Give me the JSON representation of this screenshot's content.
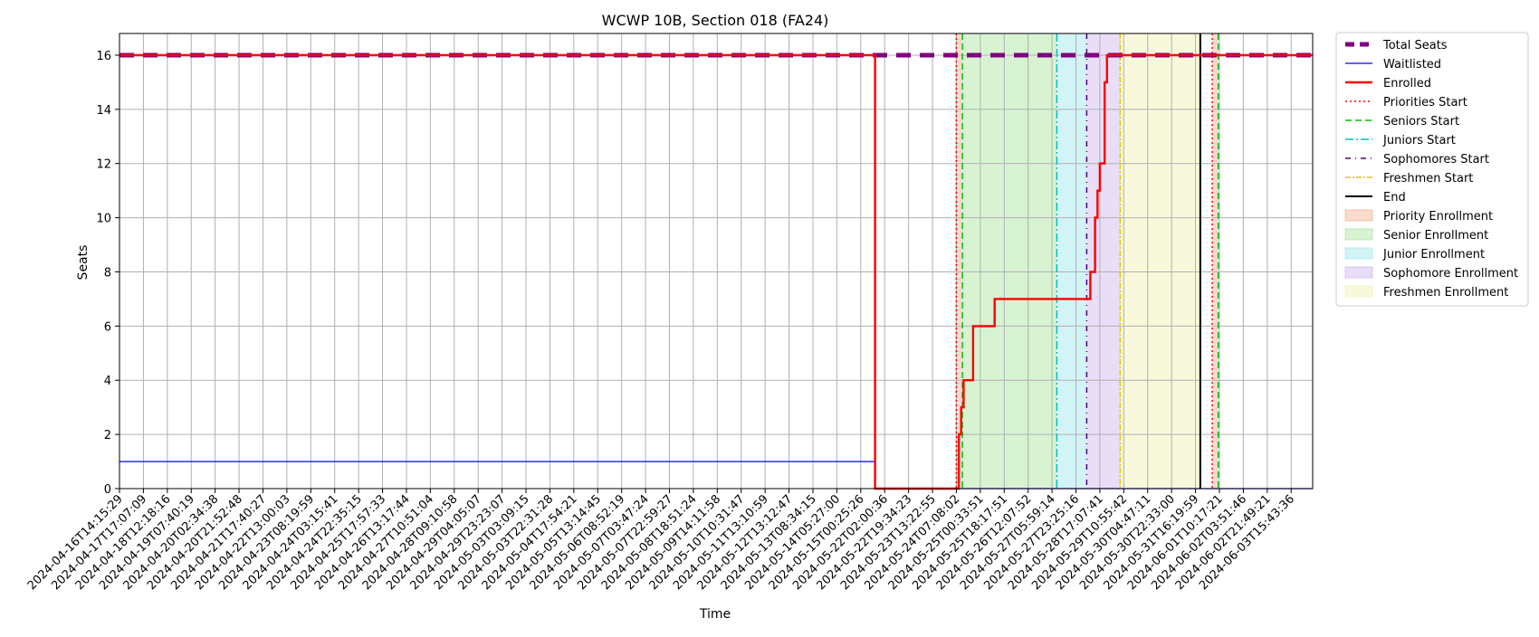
{
  "chart_data": {
    "type": "line",
    "title": "WCWP 10B, Section 018 (FA24)",
    "xlabel": "Time",
    "ylabel": "Seats",
    "ylim": [
      0,
      16.8
    ],
    "yticks": [
      0,
      2,
      4,
      6,
      8,
      10,
      12,
      14,
      16
    ],
    "grid": true,
    "legend_position": "outside-top-right",
    "x_range": [
      "2024-04-16T14:15:29",
      "2024-06-04T10:00:00"
    ],
    "xtick_labels": [
      "2024-04-16T14:15:29",
      "2024-04-17T17:07:09",
      "2024-04-18T12:18:16",
      "2024-04-19T07:40:19",
      "2024-04-20T02:34:38",
      "2024-04-20T21:52:48",
      "2024-04-21T17:40:27",
      "2024-04-22T13:00:03",
      "2024-04-23T08:19:59",
      "2024-04-24T03:15:41",
      "2024-04-24T22:35:15",
      "2024-04-25T17:57:33",
      "2024-04-26T13:17:44",
      "2024-04-27T10:51:04",
      "2024-04-28T09:10:58",
      "2024-04-29T04:05:07",
      "2024-04-29T23:23:07",
      "2024-05-03T03:09:15",
      "2024-05-03T22:31:28",
      "2024-05-04T17:54:21",
      "2024-05-05T13:14:45",
      "2024-05-06T08:52:19",
      "2024-05-07T03:47:24",
      "2024-05-07T22:59:27",
      "2024-05-08T18:51:24",
      "2024-05-09T14:11:58",
      "2024-05-10T10:31:47",
      "2024-05-11T13:10:59",
      "2024-05-12T13:12:47",
      "2024-05-13T08:34:15",
      "2024-05-14T05:27:00",
      "2024-05-15T00:25:26",
      "2024-05-22T02:00:36",
      "2024-05-22T19:34:23",
      "2024-05-23T13:22:55",
      "2024-05-24T07:08:02",
      "2024-05-25T00:33:51",
      "2024-05-25T18:17:51",
      "2024-05-26T12:07:52",
      "2024-05-27T05:59:14",
      "2024-05-27T23:25:16",
      "2024-05-28T17:07:41",
      "2024-05-29T10:55:42",
      "2024-05-30T04:47:11",
      "2024-05-30T22:33:00",
      "2024-05-31T16:19:59",
      "2024-06-01T10:17:21",
      "2024-06-02T03:51:46",
      "2024-06-02T21:49:21",
      "2024-06-03T15:43:36"
    ],
    "series": [
      {
        "name": "Total Seats",
        "color": "#800080",
        "style": "dashed-thick",
        "points": [
          [
            0,
            16
          ],
          [
            49.9,
            16
          ]
        ]
      },
      {
        "name": "Waitlisted",
        "color": "#0000ff",
        "style": "solid-thin",
        "points": [
          [
            0,
            1
          ],
          [
            31.6,
            1
          ],
          [
            31.6,
            0
          ],
          [
            49.9,
            0
          ]
        ]
      },
      {
        "name": "Enrolled",
        "color": "#ff0000",
        "style": "solid-thick",
        "points": [
          [
            0,
            16
          ],
          [
            31.6,
            16
          ],
          [
            31.6,
            0
          ],
          [
            35.1,
            0
          ],
          [
            35.1,
            2
          ],
          [
            35.2,
            2
          ],
          [
            35.2,
            3
          ],
          [
            35.3,
            3
          ],
          [
            35.3,
            4
          ],
          [
            35.7,
            4
          ],
          [
            35.7,
            6
          ],
          [
            36.6,
            6
          ],
          [
            36.6,
            7
          ],
          [
            40.6,
            7
          ],
          [
            40.6,
            8
          ],
          [
            40.8,
            8
          ],
          [
            40.8,
            10
          ],
          [
            40.9,
            10
          ],
          [
            40.9,
            11
          ],
          [
            41.0,
            11
          ],
          [
            41.0,
            12
          ],
          [
            41.2,
            12
          ],
          [
            41.2,
            15
          ],
          [
            41.3,
            15
          ],
          [
            41.3,
            16
          ],
          [
            49.9,
            16
          ]
        ]
      }
    ],
    "markers": [
      {
        "name": "Priorities Start",
        "color": "#ff0000",
        "style": "dotted",
        "x": 35.0
      },
      {
        "name": "Seniors Start",
        "color": "#00c000",
        "style": "dashed",
        "x": 35.25
      },
      {
        "name": "Juniors Start",
        "color": "#00bfbf",
        "style": "dashdot",
        "x": 39.2
      },
      {
        "name": "Sophomores Start",
        "color": "#4b0082",
        "style": "loose-dashdot",
        "x": 40.45
      },
      {
        "name": "Freshmen Start",
        "color": "#e6c800",
        "style": "dashdot-thin",
        "x": 41.85
      },
      {
        "name": "End",
        "color": "#000000",
        "style": "solid",
        "x": 45.2
      }
    ],
    "extra_markers": [
      {
        "color": "#ff0000",
        "style": "dotted",
        "x": 45.7
      },
      {
        "color": "#00c000",
        "style": "dashed",
        "x": 45.95
      }
    ],
    "spans": [
      {
        "name": "Priority Enrollment",
        "color": "#f4a582",
        "from": 34.95,
        "to": 35.25
      },
      {
        "name": "Senior Enrollment",
        "color": "#9be08f",
        "from": 35.25,
        "to": 39.2
      },
      {
        "name": "Junior Enrollment",
        "color": "#8fe3ea",
        "from": 39.2,
        "to": 40.45
      },
      {
        "name": "Sophomore Enrollment",
        "color": "#c7a9ee",
        "from": 40.45,
        "to": 41.85
      },
      {
        "name": "Freshmen Enrollment",
        "color": "#eef0a6",
        "from": 41.85,
        "to": 45.2
      }
    ],
    "extra_spans": [
      {
        "color": "#f4a582",
        "from": 45.7,
        "to": 45.95
      }
    ]
  }
}
